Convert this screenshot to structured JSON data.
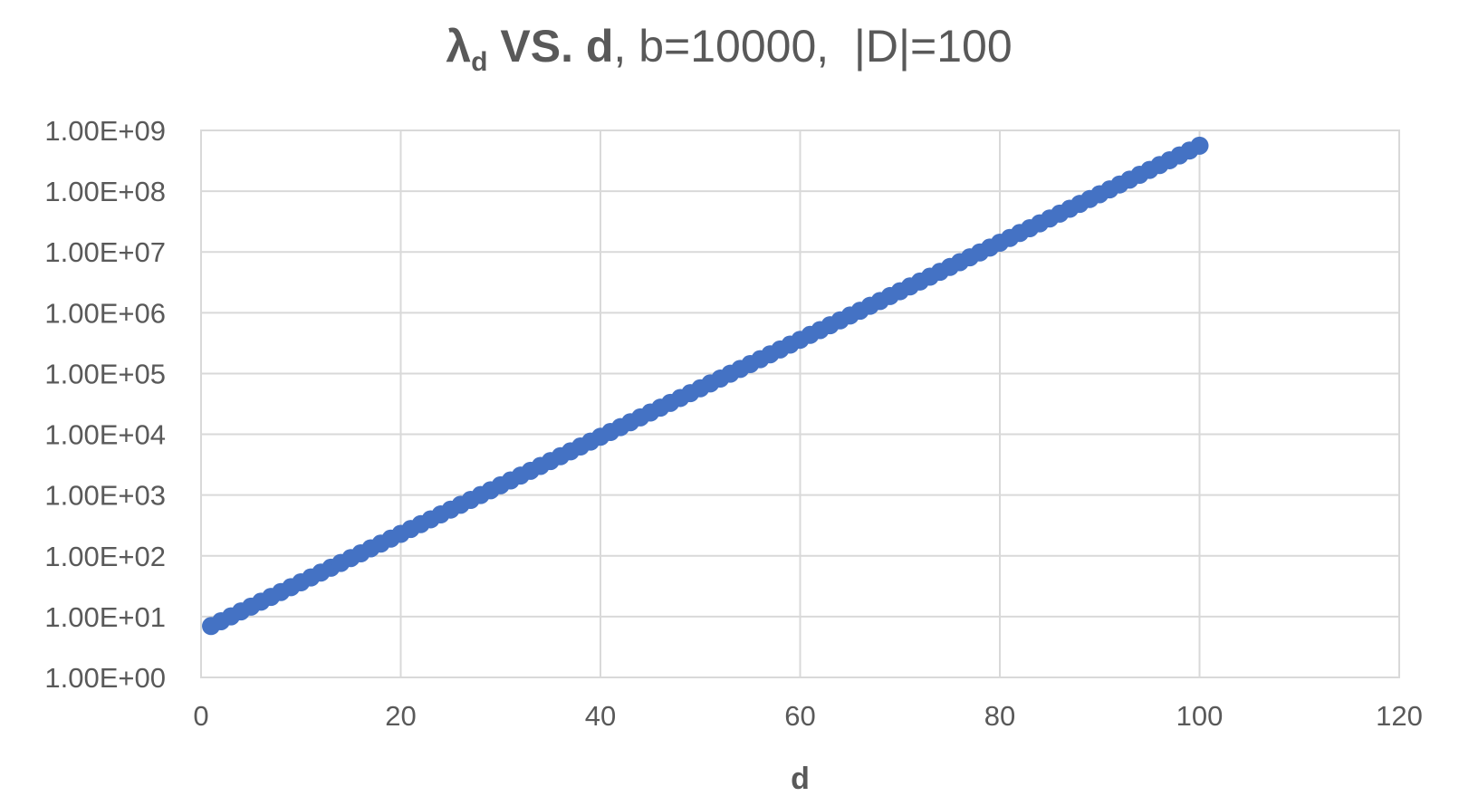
{
  "chart_data": {
    "type": "scatter",
    "title": {
      "symbol": "λ",
      "subscript": "d",
      "bold_rest": " VS. d",
      "normal_rest": ", b=10000,  |D|=100"
    },
    "xlabel": "d",
    "ylabel": "",
    "xlim": [
      0,
      120
    ],
    "x_ticks": [
      0,
      20,
      40,
      60,
      80,
      100,
      120
    ],
    "x_tick_labels": [
      "0",
      "20",
      "40",
      "60",
      "80",
      "100",
      "120"
    ],
    "y_scale": "log",
    "ylim": [
      1,
      1000000000
    ],
    "y_ticks": [
      1,
      10,
      100,
      1000,
      10000,
      100000,
      1000000,
      10000000,
      100000000,
      1000000000
    ],
    "y_tick_labels": [
      "1.00E+00",
      "1.00E+01",
      "1.00E+02",
      "1.00E+03",
      "1.00E+04",
      "1.00E+05",
      "1.00E+06",
      "1.00E+07",
      "1.00E+08",
      "1.00E+09"
    ],
    "grid": true,
    "legend": "none",
    "marker_color": "#4472c4",
    "series": [
      {
        "x": [
          1,
          2,
          3,
          4,
          5,
          6,
          7,
          8,
          9,
          10,
          11,
          12,
          13,
          14,
          15,
          16,
          17,
          18,
          19,
          20,
          21,
          22,
          23,
          24,
          25,
          26,
          27,
          28,
          29,
          30,
          31,
          32,
          33,
          34,
          35,
          36,
          37,
          38,
          39,
          40,
          41,
          42,
          43,
          44,
          45,
          46,
          47,
          48,
          49,
          50,
          51,
          52,
          53,
          54,
          55,
          56,
          57,
          58,
          59,
          60,
          61,
          62,
          63,
          64,
          65,
          66,
          67,
          68,
          69,
          70,
          71,
          72,
          73,
          74,
          75,
          76,
          77,
          78,
          79,
          80,
          81,
          82,
          83,
          84,
          85,
          86,
          87,
          88,
          89,
          90,
          91,
          92,
          93,
          94,
          95,
          96,
          97,
          98,
          99,
          100
        ],
        "y": [
          7.0,
          8.4,
          10.1,
          12.2,
          14.6,
          17.6,
          21.1,
          25.4,
          30.5,
          36.7,
          44.1,
          53.0,
          63.7,
          76.5,
          91.9,
          110,
          133,
          159,
          192,
          230,
          277,
          332,
          399,
          480,
          577,
          693,
          833,
          1000,
          1200,
          1450,
          1740,
          2090,
          2510,
          3020,
          3630,
          4360,
          5240,
          6300,
          7570,
          9100,
          10900,
          13100,
          15800,
          19000,
          22800,
          27400,
          32900,
          39600,
          47500,
          57100,
          68700,
          82500,
          99200,
          119000,
          143000,
          172000,
          207000,
          249000,
          299000,
          359000,
          432000,
          519000,
          623000,
          749000,
          900000,
          1080000,
          1300000,
          1560000,
          1880000,
          2260000,
          2710000,
          3260000,
          3920000,
          4710000,
          5660000,
          6800000,
          8170000,
          9820000,
          11800000,
          14200000,
          17000000,
          20500000,
          24600000,
          29600000,
          35600000,
          42700000,
          51400000,
          61700000,
          74200000,
          89100000,
          107000000,
          129000000,
          155000000,
          186000000,
          224000000,
          269000000,
          323000000,
          388000000,
          467000000,
          561000000
        ]
      }
    ]
  }
}
